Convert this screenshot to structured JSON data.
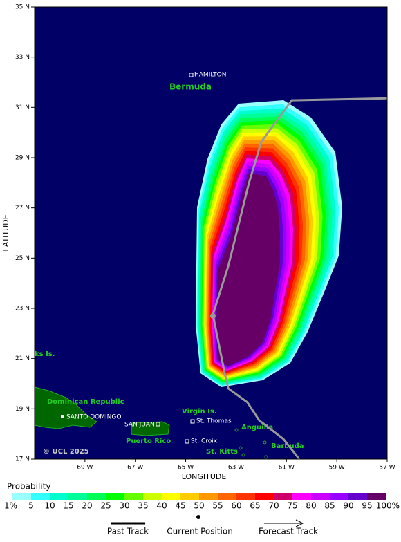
{
  "map": {
    "lon_ticks": [
      {
        "value": 69,
        "label": "69 W"
      },
      {
        "value": 67,
        "label": "67 W"
      },
      {
        "value": 65,
        "label": "65 W"
      },
      {
        "value": 63,
        "label": "63 W"
      },
      {
        "value": 61,
        "label": "61 W"
      },
      {
        "value": 59,
        "label": "59 W"
      },
      {
        "value": 57,
        "label": "57 W"
      }
    ],
    "lat_ticks": [
      {
        "value": 35,
        "label": "35 N"
      },
      {
        "value": 33,
        "label": "33 N"
      },
      {
        "value": 31,
        "label": "31 N"
      },
      {
        "value": 29,
        "label": "29 N"
      },
      {
        "value": 27,
        "label": "27 N"
      },
      {
        "value": 25,
        "label": "25 N"
      },
      {
        "value": 23,
        "label": "23 N"
      },
      {
        "value": 21,
        "label": "21 N"
      },
      {
        "value": 19,
        "label": "19 N"
      },
      {
        "value": 17,
        "label": "17 N"
      }
    ],
    "lonlim": [
      71,
      57
    ],
    "latlim": [
      17,
      35
    ],
    "x_label": "LONGITUDE",
    "y_label": "LATITUDE",
    "places": {
      "hamilton": "HAMILTON",
      "bermuda": "Bermuda",
      "turks": "ks Is.",
      "dominican": "Dominican Republic",
      "santo_domingo": "SANTO DOMINGO",
      "san_juan": "SAN JUAN",
      "puerto_rico": "Puerto Rico",
      "virgin": "Virgin Is.",
      "st_thomas": "St. Thomas",
      "st_croix": "St. Croix",
      "anguilla": "Anguilla",
      "st_kitts": "St. Kitts",
      "barbuda": "Barbuda"
    },
    "copyright": "© UCL 2025",
    "track": {
      "lon": [
        60.49,
        61.12,
        62.08,
        62.55,
        63.31,
        63.45,
        63.92,
        63.31,
        62.49,
        62.0,
        60.79,
        57.0
      ],
      "lat": [
        17.0,
        17.8,
        18.54,
        19.26,
        19.81,
        20.41,
        22.75,
        24.68,
        27.98,
        29.63,
        31.28,
        31.36
      ],
      "color": "#9a9a9a"
    },
    "current_position": {
      "lon": 63.92,
      "lat": 22.7
    }
  },
  "legend": {
    "title": "Probability",
    "labels": [
      "1%",
      "5",
      "10",
      "15",
      "20",
      "25",
      "30",
      "35",
      "40",
      "45",
      "50",
      "55",
      "60",
      "65",
      "70",
      "75",
      "80",
      "85",
      "90",
      "95",
      "100%"
    ],
    "colors": [
      "#99ffff",
      "#33ffff",
      "#00ffcc",
      "#00ff99",
      "#00ff55",
      "#00ff00",
      "#66ff00",
      "#ccff00",
      "#ffff00",
      "#ffcc00",
      "#ff9900",
      "#ff6600",
      "#ff3300",
      "#ff0000",
      "#cc0066",
      "#ff00ff",
      "#cc00ff",
      "#9900ff",
      "#6600cc",
      "#660066"
    ],
    "past_track": "Past Track",
    "current_position": "Current Position",
    "forecast_track": "Forecast Track"
  }
}
